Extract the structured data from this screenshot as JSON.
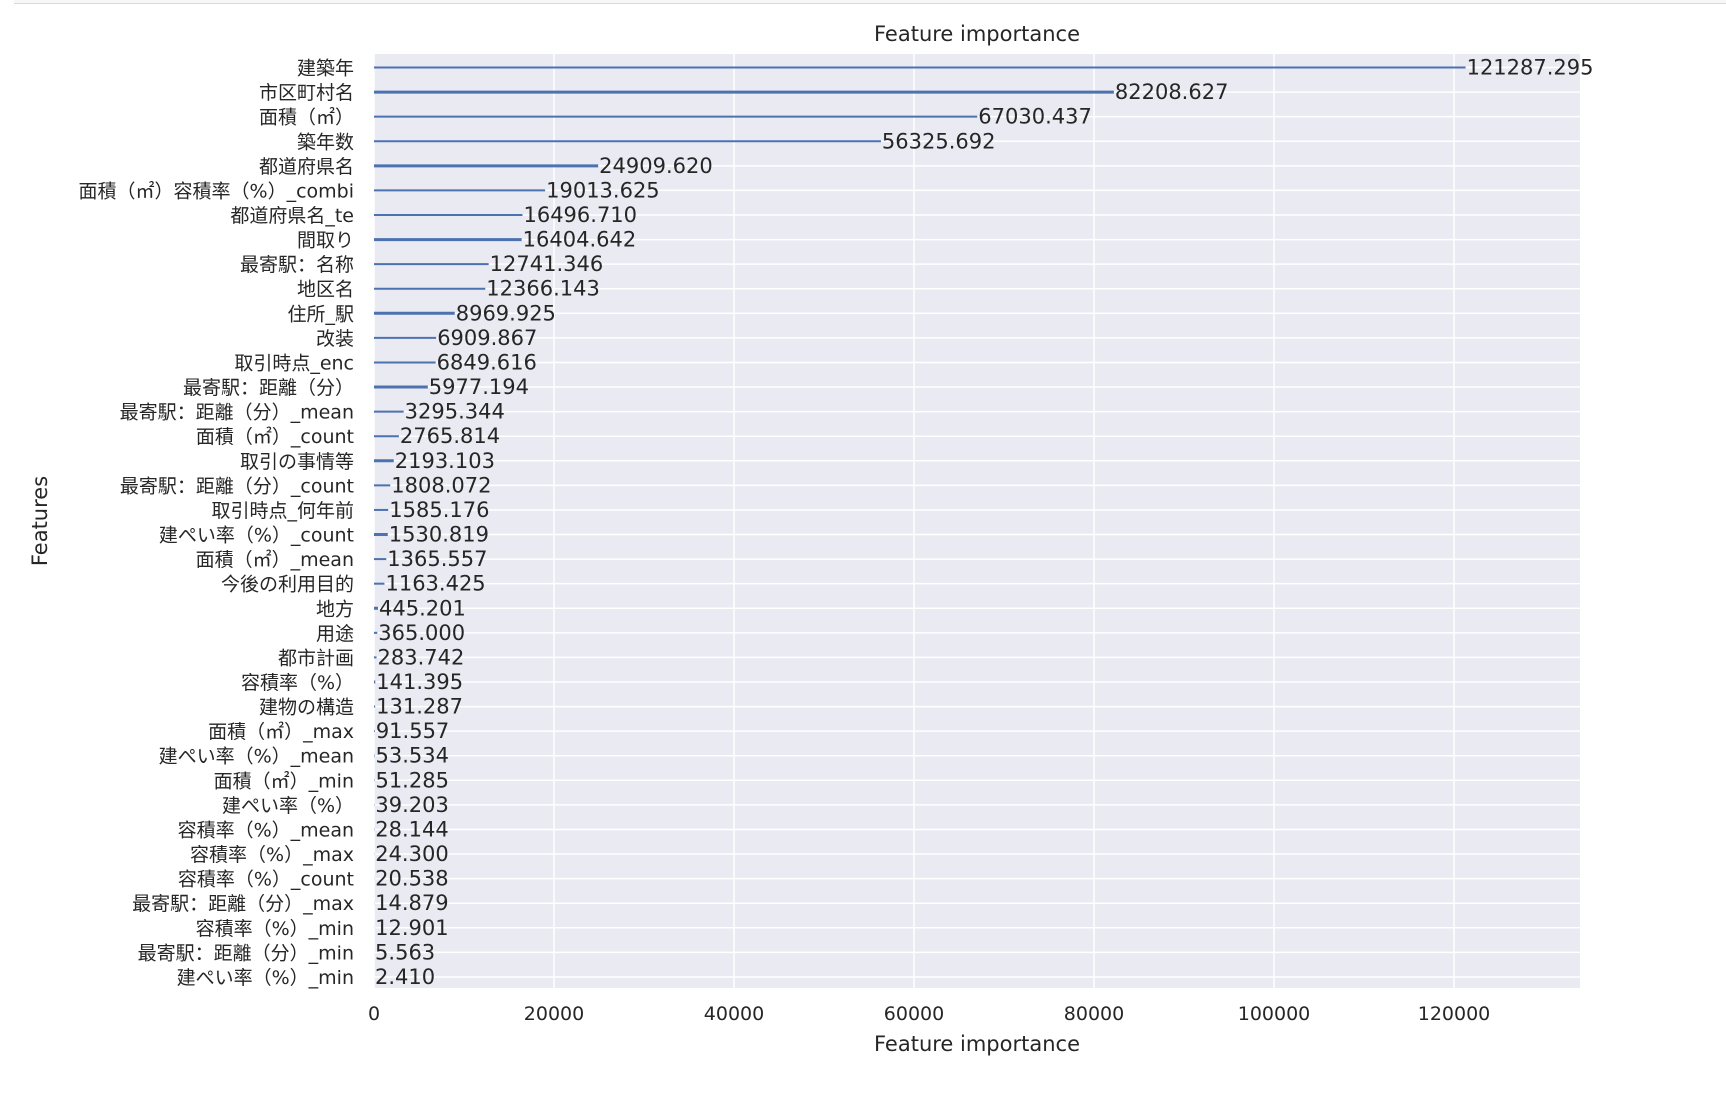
{
  "chart_data": {
    "type": "bar",
    "orientation": "horizontal",
    "title": "Feature importance",
    "xlabel": "Feature importance",
    "ylabel": "Features",
    "xlim": [
      0,
      134000
    ],
    "xticks": [
      0,
      20000,
      40000,
      60000,
      80000,
      100000,
      120000
    ],
    "xtick_labels": [
      "0",
      "20000",
      "40000",
      "60000",
      "80000",
      "100000",
      "120000"
    ],
    "grid": true,
    "bar_color": "#4c72b0",
    "background_color": "#eaeaf2",
    "categories": [
      "建築年",
      "市区町村名",
      "面積（㎡）",
      "築年数",
      "都道府県名",
      "面積（㎡）容積率（%）_combi",
      "都道府県名_te",
      "間取り",
      "最寄駅：名称",
      "地区名",
      "住所_駅",
      "改装",
      "取引時点_enc",
      "最寄駅：距離（分）",
      "最寄駅：距離（分）_mean",
      "面積（㎡）_count",
      "取引の事情等",
      "最寄駅：距離（分）_count",
      "取引時点_何年前",
      "建ぺい率（%）_count",
      "面積（㎡）_mean",
      "今後の利用目的",
      "地方",
      "用途",
      "都市計画",
      "容積率（%）",
      "建物の構造",
      "面積（㎡）_max",
      "建ぺい率（%）_mean",
      "面積（㎡）_min",
      "建ぺい率（%）",
      "容積率（%）_mean",
      "容積率（%）_max",
      "容積率（%）_count",
      "最寄駅：距離（分）_max",
      "容積率（%）_min",
      "最寄駅：距離（分）_min",
      "建ぺい率（%）_min"
    ],
    "values": [
      121287.295,
      82208.627,
      67030.437,
      56325.692,
      24909.62,
      19013.625,
      16496.71,
      16404.642,
      12741.346,
      12366.143,
      8969.925,
      6909.867,
      6849.616,
      5977.194,
      3295.344,
      2765.814,
      2193.103,
      1808.072,
      1585.176,
      1530.819,
      1365.557,
      1163.425,
      445.201,
      365.0,
      283.742,
      141.395,
      131.287,
      91.557,
      53.534,
      51.285,
      39.203,
      28.144,
      24.3,
      20.538,
      14.879,
      12.901,
      5.563,
      2.41
    ],
    "value_labels": [
      "121287.295",
      "82208.627",
      "67030.437",
      "56325.692",
      "24909.620",
      "19013.625",
      "16496.710",
      "16404.642",
      "12741.346",
      "12366.143",
      "8969.925",
      "6909.867",
      "6849.616",
      "5977.194",
      "3295.344",
      "2765.814",
      "2193.103",
      "1808.072",
      "1585.176",
      "1530.819",
      "1365.557",
      "1163.425",
      "445.201",
      "365.000",
      "283.742",
      "141.395",
      "131.287",
      "91.557",
      "53.534",
      "51.285",
      "39.203",
      "28.144",
      "24.300",
      "20.538",
      "14.879",
      "12.901",
      "5.563",
      "2.410"
    ]
  }
}
